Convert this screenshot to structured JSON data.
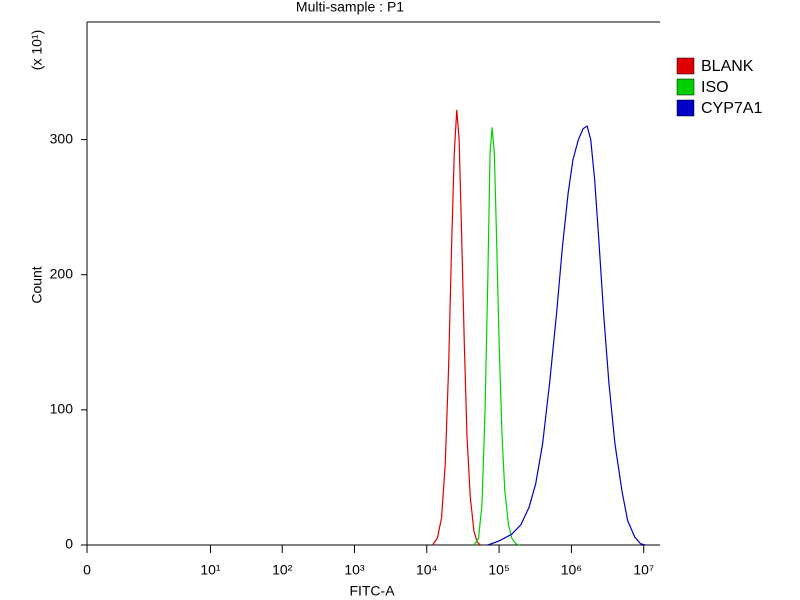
{
  "chart_data": {
    "type": "line",
    "title": "Multi-sample : P1",
    "x_label": "FITC-A",
    "y_label": "Count",
    "y_multiplier": "(x 10¹)",
    "xscale": "biexponential",
    "xlim": [
      0,
      16800000
    ],
    "xticks": [
      0,
      {
        "value": 10,
        "label": "10¹"
      },
      {
        "value": 100,
        "label": "10²"
      },
      {
        "value": 1000,
        "label": "10³"
      },
      {
        "value": 10000,
        "label": "10⁴"
      },
      {
        "value": 100000,
        "label": "10⁵"
      },
      {
        "value": 1000000,
        "label": "10⁶"
      },
      {
        "value": 10000000,
        "label": "10⁷"
      }
    ],
    "ylim": [
      0,
      387
    ],
    "yticks": [
      0,
      100,
      200,
      300
    ],
    "legend": "right",
    "series": [
      {
        "name": "BLANK",
        "color": "#e00000",
        "x": [
          12000,
          14000,
          16000,
          18000,
          20000,
          22000,
          24000,
          26000,
          28000,
          30000,
          33000,
          36000,
          40000,
          45000,
          50000,
          55000
        ],
        "values": [
          0,
          5,
          20,
          60,
          130,
          220,
          290,
          322,
          300,
          240,
          150,
          80,
          35,
          10,
          2,
          0
        ]
      },
      {
        "name": "ISO",
        "color": "#00d000",
        "x": [
          45000,
          52000,
          58000,
          64000,
          70000,
          75000,
          80000,
          86000,
          92000,
          100000,
          110000,
          120000,
          135000,
          150000,
          170000,
          190000
        ],
        "values": [
          0,
          5,
          30,
          100,
          200,
          290,
          309,
          290,
          230,
          150,
          80,
          40,
          15,
          5,
          1,
          0
        ]
      },
      {
        "name": "CYP7A1",
        "color": "#0000c8",
        "x": [
          70000,
          100000,
          150000,
          200000,
          260000,
          320000,
          400000,
          500000,
          620000,
          750000,
          900000,
          1050000,
          1250000,
          1450000,
          1650000,
          1850000,
          2100000,
          2400000,
          2800000,
          3300000,
          4000000,
          5000000,
          6000000,
          7500000,
          9000000,
          10500000
        ],
        "values": [
          0,
          3,
          8,
          15,
          28,
          45,
          75,
          120,
          170,
          220,
          260,
          285,
          300,
          308,
          310,
          300,
          270,
          225,
          170,
          120,
          75,
          40,
          18,
          6,
          1,
          0
        ]
      }
    ]
  }
}
